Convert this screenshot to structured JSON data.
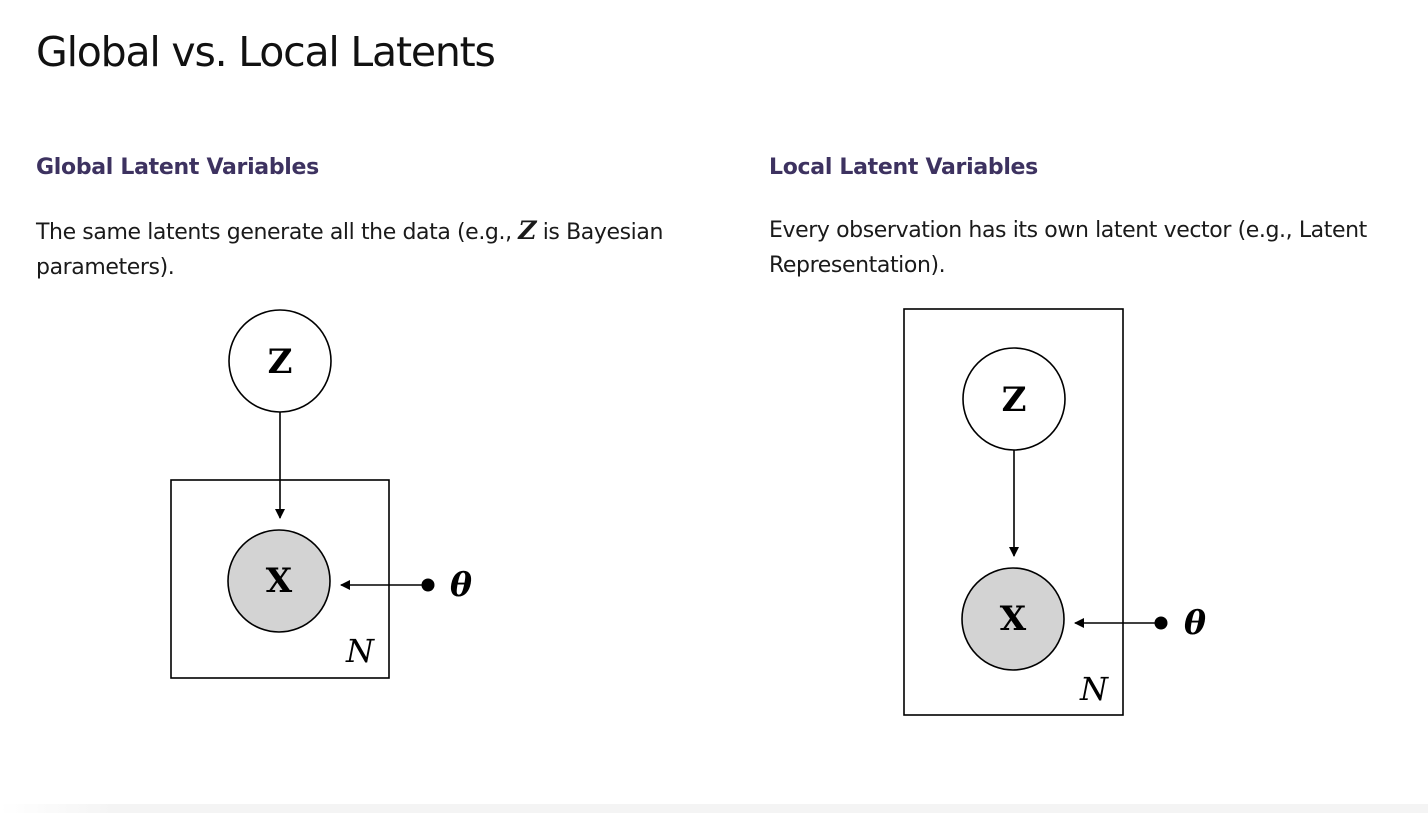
{
  "page": {
    "title": "Global vs. Local Latents"
  },
  "global": {
    "heading": "Global Latent Variables",
    "description_before": "The same latents generate all the data (e.g., ",
    "description_var": "Z",
    "description_after": " is Bayesian parameters).",
    "diagram": {
      "latent_label": "Z",
      "observed_label": "X",
      "plate_label": "N",
      "param_label": "θ"
    }
  },
  "local": {
    "heading": "Local Latent Variables",
    "description": "Every observation has its own latent vector (e.g., Latent Representation).",
    "diagram": {
      "latent_label": "Z",
      "observed_label": "X",
      "plate_label": "N",
      "param_label": "θ"
    }
  },
  "colors": {
    "heading": "#3d3260",
    "observed_fill": "#d3d3d3",
    "latent_fill": "#ffffff",
    "stroke": "#000000"
  }
}
